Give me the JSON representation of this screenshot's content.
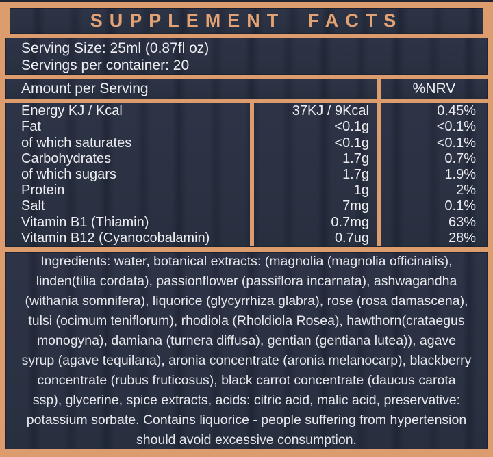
{
  "colors": {
    "accent_orange": "#dd9c6e",
    "title_orange": "#e2a273",
    "panel_navy": "#2c3244",
    "text_white": "#edeef2"
  },
  "title": "SUPPLEMENT FACTS",
  "serving": {
    "size_line": "Serving Size: 25ml (0.87fl oz)",
    "count_line": "Servings per container: 20"
  },
  "table": {
    "header": {
      "amount_label": "Amount per Serving",
      "nrv_label": "%NRV"
    },
    "rows": [
      {
        "name": "Energy KJ / Kcal",
        "amount": "37KJ / 9Kcal",
        "nrv": "0.45%"
      },
      {
        "name": "Fat",
        "amount": "<0.1g",
        "nrv": "<0.1%"
      },
      {
        "name": "of which saturates",
        "amount": "<0.1g",
        "nrv": "<0.1%"
      },
      {
        "name": "Carbohydrates",
        "amount": "1.7g",
        "nrv": "0.7%"
      },
      {
        "name": "of which sugars",
        "amount": "1.7g",
        "nrv": "1.9%"
      },
      {
        "name": "Protein",
        "amount": "1g",
        "nrv": "2%"
      },
      {
        "name": "Salt",
        "amount": "7mg",
        "nrv": "0.1%"
      },
      {
        "name": "Vitamin B1 (Thiamin)",
        "amount": "0.7mg",
        "nrv": "63%"
      },
      {
        "name": "Vitamin B12 (Cyanocobalamin)",
        "amount": "0.7ug",
        "nrv": "28%"
      }
    ]
  },
  "ingredients": "Ingredients: water, botanical extracts: (magnolia (magnolia officinalis), linden(tilia cordata), passionflower (passiflora incarnata), ashwagandha (withania somnifera), liquorice (glycyrrhiza glabra), rose (rosa damascena), tulsi (ocimum teniflorum), rhodiola (Rholdiola Rosea), hawthorn(crataegus monogyna), damiana (turnera diffusa), gentian (gentiana lutea)), agave syrup (agave tequilana), aronia concentrate (aronia melanocarp), blackberry concentrate (rubus fruticosus), black carrot concentrate (daucus carota ssp), glycerine, spice extracts, acids: citric acid, malic acid, preservative: potassium sorbate. Contains liquorice - people suffering from hypertension should avoid excessive consumption."
}
